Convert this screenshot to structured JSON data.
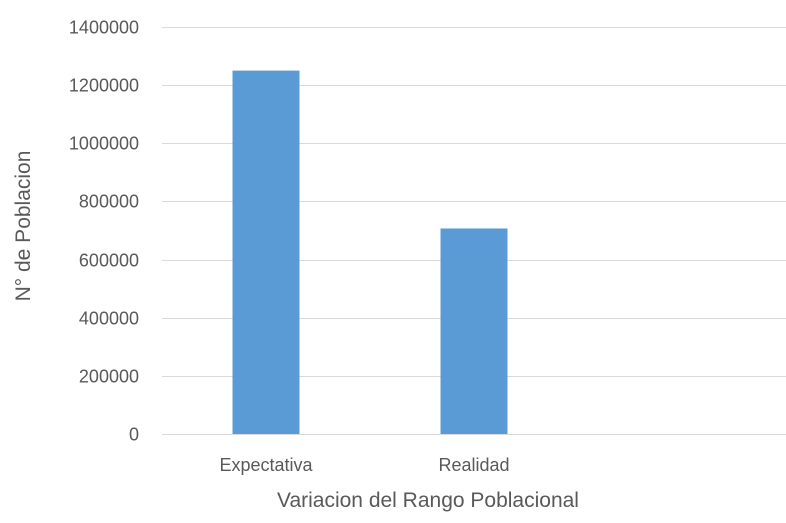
{
  "chart_data": {
    "type": "bar",
    "categories": [
      "Expectativa",
      "Realidad",
      ""
    ],
    "values": [
      1250000,
      707000,
      null
    ],
    "title": "",
    "xlabel": "Variacion del Rango Poblacional",
    "ylabel": "N° de Poblacion",
    "ylim": [
      0,
      1400000
    ],
    "yticks": [
      0,
      200000,
      400000,
      600000,
      800000,
      1000000,
      1200000,
      1400000
    ],
    "ytick_labels": [
      "0",
      "200000",
      "400000",
      "600000",
      "800000",
      "1000000",
      "1200000",
      "1400000"
    ],
    "grid": true,
    "legend": "none",
    "bar_color": "#5b9bd5",
    "grid_color": "#d9d9d9",
    "text_color": "#595959"
  }
}
